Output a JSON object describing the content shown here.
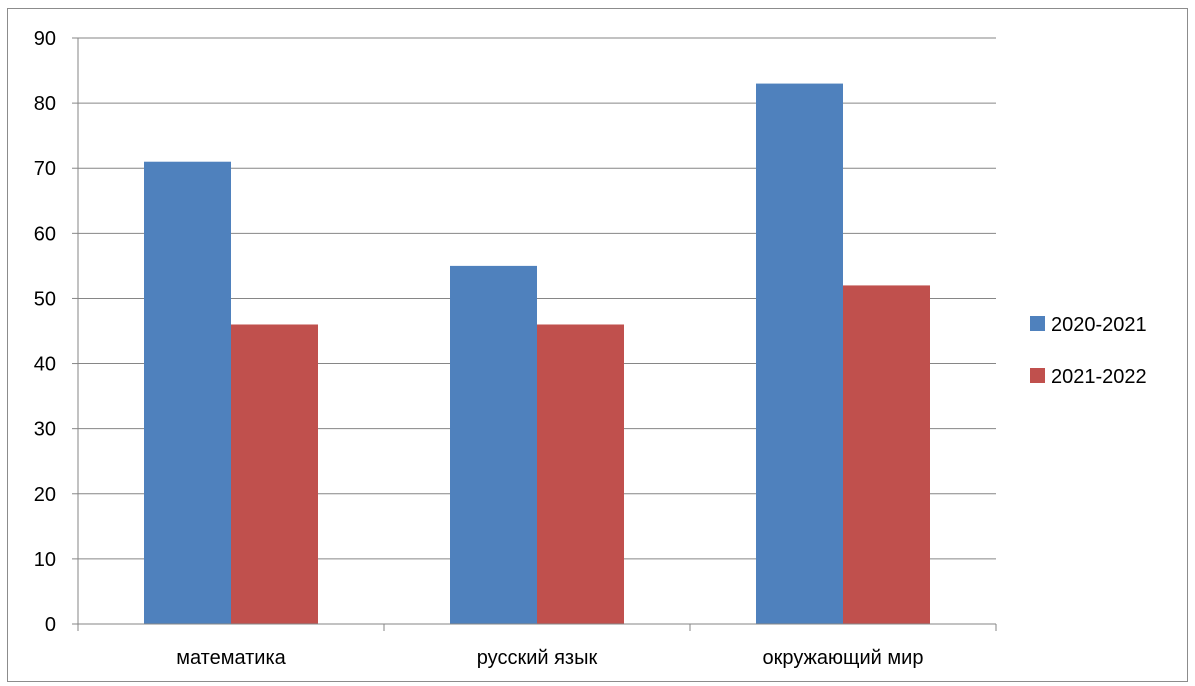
{
  "chart_data": {
    "type": "bar",
    "categories": [
      "математика",
      "русский язык",
      "окружающий мир"
    ],
    "series": [
      {
        "name": "2020-2021",
        "values": [
          71,
          55,
          83
        ],
        "color": "#4F81BD"
      },
      {
        "name": "2021-2022",
        "values": [
          46,
          46,
          52
        ],
        "color": "#C0504D"
      }
    ],
    "ylim": [
      0,
      90
    ],
    "yticks": [
      0,
      10,
      20,
      30,
      40,
      50,
      60,
      70,
      80,
      90
    ],
    "grid": true,
    "legend_position": "right"
  }
}
